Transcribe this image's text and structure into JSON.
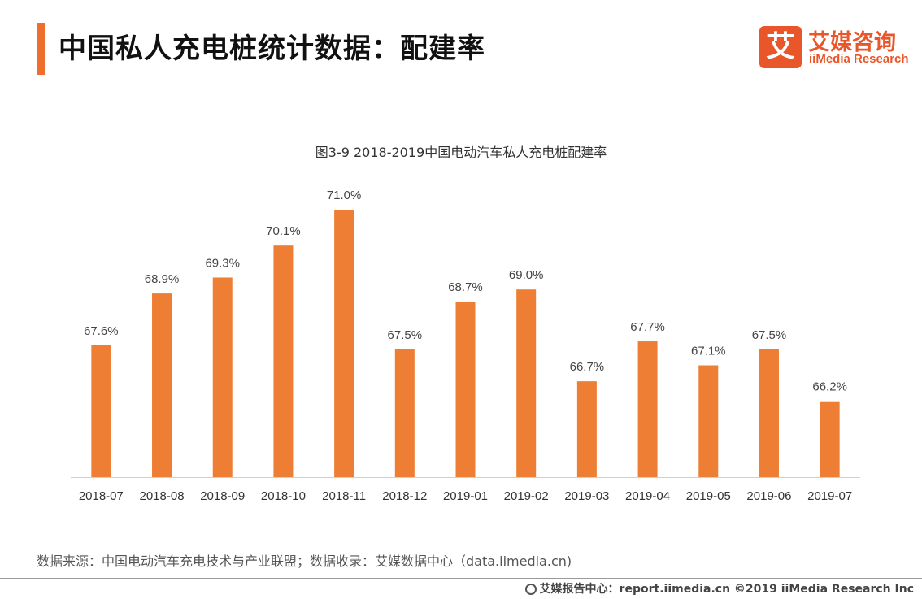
{
  "header": {
    "title": "中国私人充电桩统计数据：配建率",
    "logo_mark": "艾",
    "logo_cn": "艾媒咨询",
    "logo_en": "iiMedia Research"
  },
  "chart_data": {
    "type": "bar",
    "title": "图3-9 2018-2019中国电动汽车私人充电桩配建率",
    "categories": [
      "2018-07",
      "2018-08",
      "2018-09",
      "2018-10",
      "2018-11",
      "2018-12",
      "2019-01",
      "2019-02",
      "2019-03",
      "2019-04",
      "2019-05",
      "2019-06",
      "2019-07"
    ],
    "values": [
      67.6,
      68.9,
      69.3,
      70.1,
      71.0,
      67.5,
      68.7,
      69.0,
      66.7,
      67.7,
      67.1,
      67.5,
      66.2
    ],
    "value_labels": [
      "67.6%",
      "68.9%",
      "69.3%",
      "70.1%",
      "71.0%",
      "67.5%",
      "68.7%",
      "69.0%",
      "66.7%",
      "67.7%",
      "67.1%",
      "67.5%",
      "66.2%"
    ],
    "unit": "%",
    "xlabel": "",
    "ylabel": "",
    "ylim": [
      64.3,
      71.0
    ],
    "grid": false,
    "bar_color": "#ee7e33"
  },
  "footer": {
    "source": "数据来源：中国电动汽车充电技术与产业联盟；数据收录：艾媒数据中心（data.iimedia.cn)",
    "copyright": "艾媒报告中心：report.iimedia.cn   ©2019  iiMedia Research  Inc"
  },
  "colors": {
    "accent": "#ee6f2d",
    "brand": "#e8562a"
  }
}
